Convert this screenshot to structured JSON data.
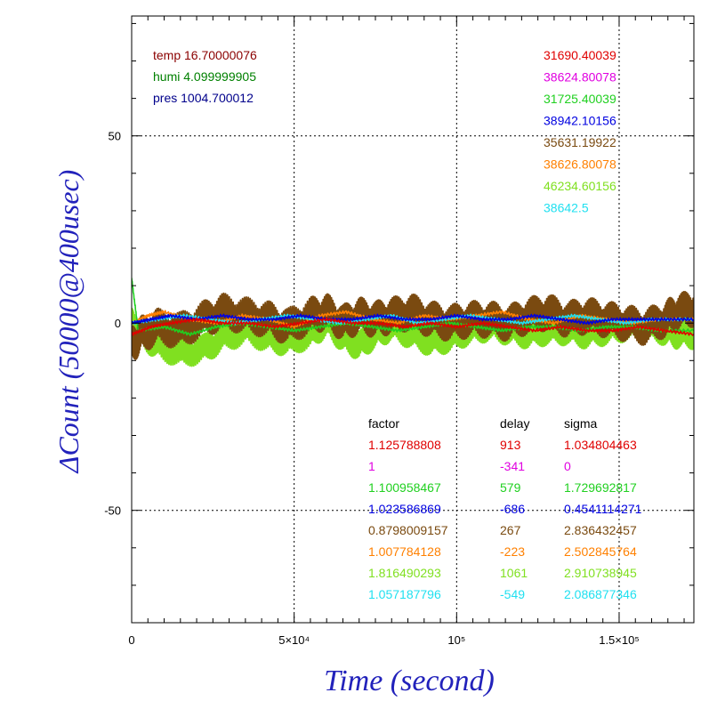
{
  "chart_data": {
    "type": "line",
    "xlabel": "Time (second)",
    "ylabel": "ΔCount (50000@400usec)",
    "xlim": [
      0,
      173000
    ],
    "ylim": [
      -80,
      82
    ],
    "x_ticks": [
      {
        "value": 0,
        "label": "0"
      },
      {
        "value": 50000,
        "label": "5×10⁴"
      },
      {
        "value": 100000,
        "label": "10⁵"
      },
      {
        "value": 150000,
        "label": "1.5×10⁵"
      }
    ],
    "y_ticks": [
      {
        "value": 50,
        "label": "50"
      },
      {
        "value": 0,
        "label": "0"
      },
      {
        "value": -50,
        "label": "-50"
      }
    ],
    "grid": true,
    "env": [
      {
        "label": "temp 16.70000076",
        "color": "#8b0000"
      },
      {
        "label": "humi 4.099999905",
        "color": "#008000"
      },
      {
        "label": "pres 1004.700012",
        "color": "#00008b"
      }
    ],
    "legend_values": [
      {
        "label": "31690.40039",
        "color": "#e00000"
      },
      {
        "label": "38624.80078",
        "color": "#e000e0"
      },
      {
        "label": "31725.40039",
        "color": "#20d020"
      },
      {
        "label": "38942.10156",
        "color": "#0000e0"
      },
      {
        "label": "35631.19922",
        "color": "#7a4a10"
      },
      {
        "label": "38626.80078",
        "color": "#ff8000"
      },
      {
        "label": "46234.60156",
        "color": "#80e020"
      },
      {
        "label": "38642.5",
        "color": "#20e0f0"
      }
    ],
    "table_headers": [
      "factor",
      "delay",
      "sigma"
    ],
    "table_rows": [
      {
        "factor": "1.125788808",
        "delay": "913",
        "sigma": "1.034804463",
        "color": "#e00000"
      },
      {
        "factor": "1",
        "delay": "-341",
        "sigma": "0",
        "color": "#e000e0"
      },
      {
        "factor": "1.100958467",
        "delay": "579",
        "sigma": "1.729692817",
        "color": "#20d020"
      },
      {
        "factor": "1.023586869",
        "delay": "-686",
        "sigma": "0.4541114271",
        "color": "#0000e0"
      },
      {
        "factor": "0.8798009157",
        "delay": "267",
        "sigma": "2.836432457",
        "color": "#7a4a10"
      },
      {
        "factor": "1.007784128",
        "delay": "-223",
        "sigma": "2.502845764",
        "color": "#ff8000"
      },
      {
        "factor": "1.816490293",
        "delay": "1061",
        "sigma": "2.910738945",
        "color": "#80e020"
      },
      {
        "factor": "1.057187796",
        "delay": "-549",
        "sigma": "2.086877346",
        "color": "#20e0f0"
      }
    ],
    "series": [
      {
        "color": "#80e020",
        "band": 4,
        "x": [
          0,
          3000,
          8000,
          15000,
          22000,
          28000,
          35000,
          42000,
          48000,
          55000,
          60000,
          65000,
          70000,
          75000,
          80000,
          86000,
          92000,
          98000,
          104000,
          110000,
          116000,
          122000,
          128000,
          134000,
          140000,
          146000,
          152000,
          158000,
          164000,
          168000,
          173000
        ],
        "y": [
          0,
          -3,
          -6,
          -8,
          -7,
          -4,
          -2,
          -4,
          -5,
          -3,
          0,
          -4,
          -6,
          -3,
          -1,
          -3,
          -5,
          -4,
          -2,
          -1,
          -2,
          -3,
          -2,
          -2,
          -3,
          -2,
          -1,
          -1,
          -2,
          -3,
          -3
        ]
      },
      {
        "color": "#7a4a10",
        "band": 5,
        "x": [
          0,
          3000,
          8000,
          15000,
          22000,
          28000,
          35000,
          42000,
          48000,
          55000,
          60000,
          65000,
          70000,
          75000,
          80000,
          86000,
          92000,
          98000,
          104000,
          110000,
          116000,
          122000,
          128000,
          134000,
          140000,
          146000,
          152000,
          158000,
          164000,
          168000,
          173000
        ],
        "y": [
          -6,
          -3,
          -1,
          -2,
          1,
          3,
          2,
          1,
          -1,
          2,
          3,
          0,
          2,
          1,
          2,
          3,
          1,
          0,
          1,
          1,
          0,
          2,
          3,
          1,
          2,
          1,
          0,
          -1,
          1,
          3,
          4
        ]
      },
      {
        "color": "#ff8000",
        "band": 1,
        "x": [
          0,
          5000,
          10000,
          18000,
          26000,
          34000,
          42000,
          50000,
          58000,
          66000,
          74000,
          82000,
          90000,
          98000,
          106000,
          114000,
          122000,
          130000,
          138000,
          146000,
          154000,
          162000,
          173000
        ],
        "y": [
          0,
          2,
          3,
          1,
          0,
          2,
          1,
          -1,
          2,
          3,
          1,
          0,
          2,
          1,
          2,
          3,
          1,
          0,
          2,
          1,
          0,
          1,
          1
        ]
      },
      {
        "color": "#20d020",
        "band": 1,
        "x": [
          0,
          2000,
          10000,
          18000,
          26000,
          34000,
          42000,
          50000,
          58000,
          66000,
          74000,
          82000,
          90000,
          98000,
          106000,
          114000,
          122000,
          130000,
          138000,
          146000,
          154000,
          162000,
          173000
        ],
        "y": [
          12,
          -2,
          -1,
          -3,
          -1,
          0,
          -1,
          -2,
          -1,
          0,
          -1,
          -2,
          -1,
          0,
          -1,
          -2,
          -1,
          -1,
          -2,
          -1,
          -1,
          -2,
          -2
        ]
      },
      {
        "color": "#20e0f0",
        "band": 1,
        "x": [
          0,
          8000,
          16000,
          24000,
          32000,
          40000,
          48000,
          56000,
          64000,
          72000,
          80000,
          88000,
          96000,
          104000,
          112000,
          120000,
          128000,
          136000,
          144000,
          152000,
          160000,
          173000
        ],
        "y": [
          0,
          1,
          2,
          1,
          0,
          1,
          2,
          1,
          0,
          1,
          2,
          0,
          1,
          2,
          1,
          0,
          1,
          2,
          1,
          0,
          1,
          1
        ]
      },
      {
        "color": "#0000e0",
        "band": 1,
        "x": [
          0,
          6000,
          12000,
          20000,
          28000,
          36000,
          44000,
          52000,
          60000,
          68000,
          76000,
          84000,
          92000,
          100000,
          108000,
          116000,
          124000,
          132000,
          140000,
          148000,
          156000,
          164000,
          173000
        ],
        "y": [
          0,
          1,
          2,
          1,
          2,
          1,
          1,
          2,
          1,
          1,
          2,
          1,
          1,
          2,
          1,
          1,
          2,
          1,
          0,
          1,
          1,
          1,
          1
        ]
      },
      {
        "color": "#e00000",
        "band": 1,
        "x": [
          0,
          6000,
          12000,
          20000,
          28000,
          36000,
          44000,
          52000,
          60000,
          68000,
          76000,
          84000,
          92000,
          100000,
          108000,
          116000,
          124000,
          132000,
          140000,
          148000,
          156000,
          164000,
          173000
        ],
        "y": [
          -3,
          -1,
          0,
          1,
          0,
          0,
          -1,
          0,
          1,
          0,
          0,
          -1,
          0,
          -1,
          0,
          -1,
          -2,
          -1,
          -2,
          -2,
          -1,
          -2,
          -3
        ]
      }
    ]
  }
}
